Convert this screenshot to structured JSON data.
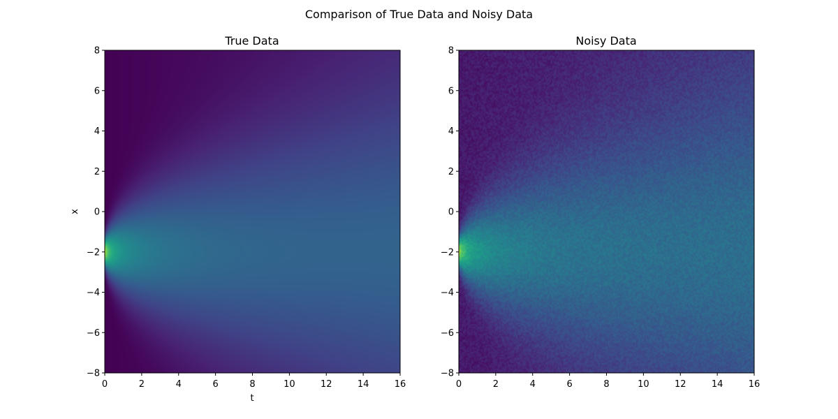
{
  "figure": {
    "suptitle": "Comparison of True Data and Noisy Data"
  },
  "chart_data": [
    {
      "type": "heatmap",
      "title": "True Data",
      "xlabel": "t",
      "ylabel": "x",
      "xlim": [
        0,
        16
      ],
      "ylim": [
        -8,
        8
      ],
      "xticks": [
        0,
        2,
        4,
        6,
        8,
        10,
        12,
        14,
        16
      ],
      "yticks": [
        -8,
        -6,
        -4,
        -2,
        0,
        2,
        4,
        6,
        8
      ],
      "colormap": "viridis",
      "peak": {
        "t": 0,
        "x": -2
      },
      "noisy": false,
      "colors": {
        "low": "#440154",
        "mid": "#31688e",
        "high": "#fde725",
        "background": "#472f7d"
      }
    },
    {
      "type": "heatmap",
      "title": "Noisy Data",
      "xlabel": "",
      "ylabel": "",
      "xlim": [
        0,
        16
      ],
      "ylim": [
        -8,
        8
      ],
      "xticks": [
        0,
        2,
        4,
        6,
        8,
        10,
        12,
        14,
        16
      ],
      "yticks": [
        -8,
        -6,
        -4,
        -2,
        0,
        2,
        4,
        6,
        8
      ],
      "colormap": "viridis",
      "peak": {
        "t": 0,
        "x": -2
      },
      "noisy": true,
      "colors": {
        "low": "#440154",
        "mid": "#31688e",
        "high": "#fde725",
        "background": "#3b528b"
      }
    }
  ]
}
